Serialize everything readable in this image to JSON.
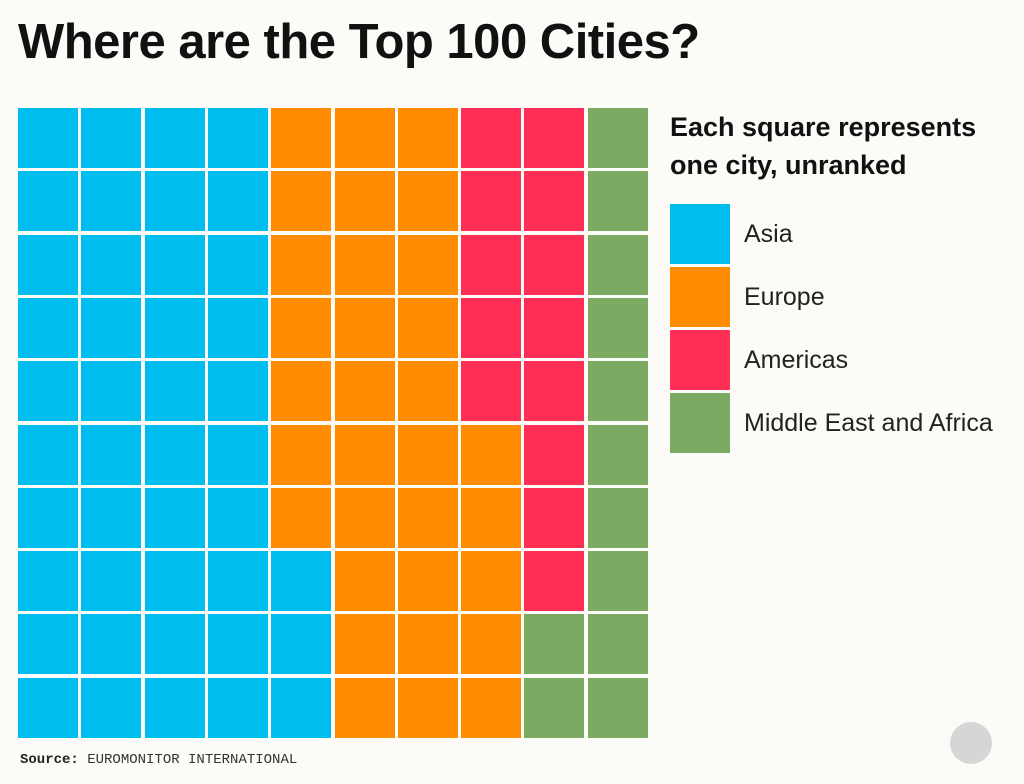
{
  "title": "Where are the Top 100 Cities?",
  "legend_title": "Each square represents one city, unranked",
  "source_label": "Source:",
  "source_value": "EUROMONITOR INTERNATIONAL",
  "chart_data": {
    "type": "waffle",
    "title": "Where are the Top 100 Cities?",
    "categories": [
      "Asia",
      "Europe",
      "Americas",
      "Middle East and Africa"
    ],
    "values": [
      43,
      32,
      13,
      12
    ],
    "colors": [
      "#00bdf0",
      "#ff8c00",
      "#ff2e57",
      "#7daa63"
    ],
    "legend_placement": "right",
    "grid": [
      [
        0,
        0,
        0,
        0,
        1,
        1,
        1,
        2,
        2,
        3
      ],
      [
        0,
        0,
        0,
        0,
        1,
        1,
        1,
        2,
        2,
        3
      ],
      [
        0,
        0,
        0,
        0,
        1,
        1,
        1,
        2,
        2,
        3
      ],
      [
        0,
        0,
        0,
        0,
        1,
        1,
        1,
        2,
        2,
        3
      ],
      [
        0,
        0,
        0,
        0,
        1,
        1,
        1,
        2,
        2,
        3
      ],
      [
        0,
        0,
        0,
        0,
        1,
        1,
        1,
        1,
        2,
        3
      ],
      [
        0,
        0,
        0,
        0,
        1,
        1,
        1,
        1,
        2,
        3
      ],
      [
        0,
        0,
        0,
        0,
        0,
        1,
        1,
        1,
        2,
        3
      ],
      [
        0,
        0,
        0,
        0,
        0,
        1,
        1,
        1,
        3,
        3
      ],
      [
        0,
        0,
        0,
        0,
        0,
        1,
        1,
        1,
        3,
        3
      ]
    ]
  }
}
